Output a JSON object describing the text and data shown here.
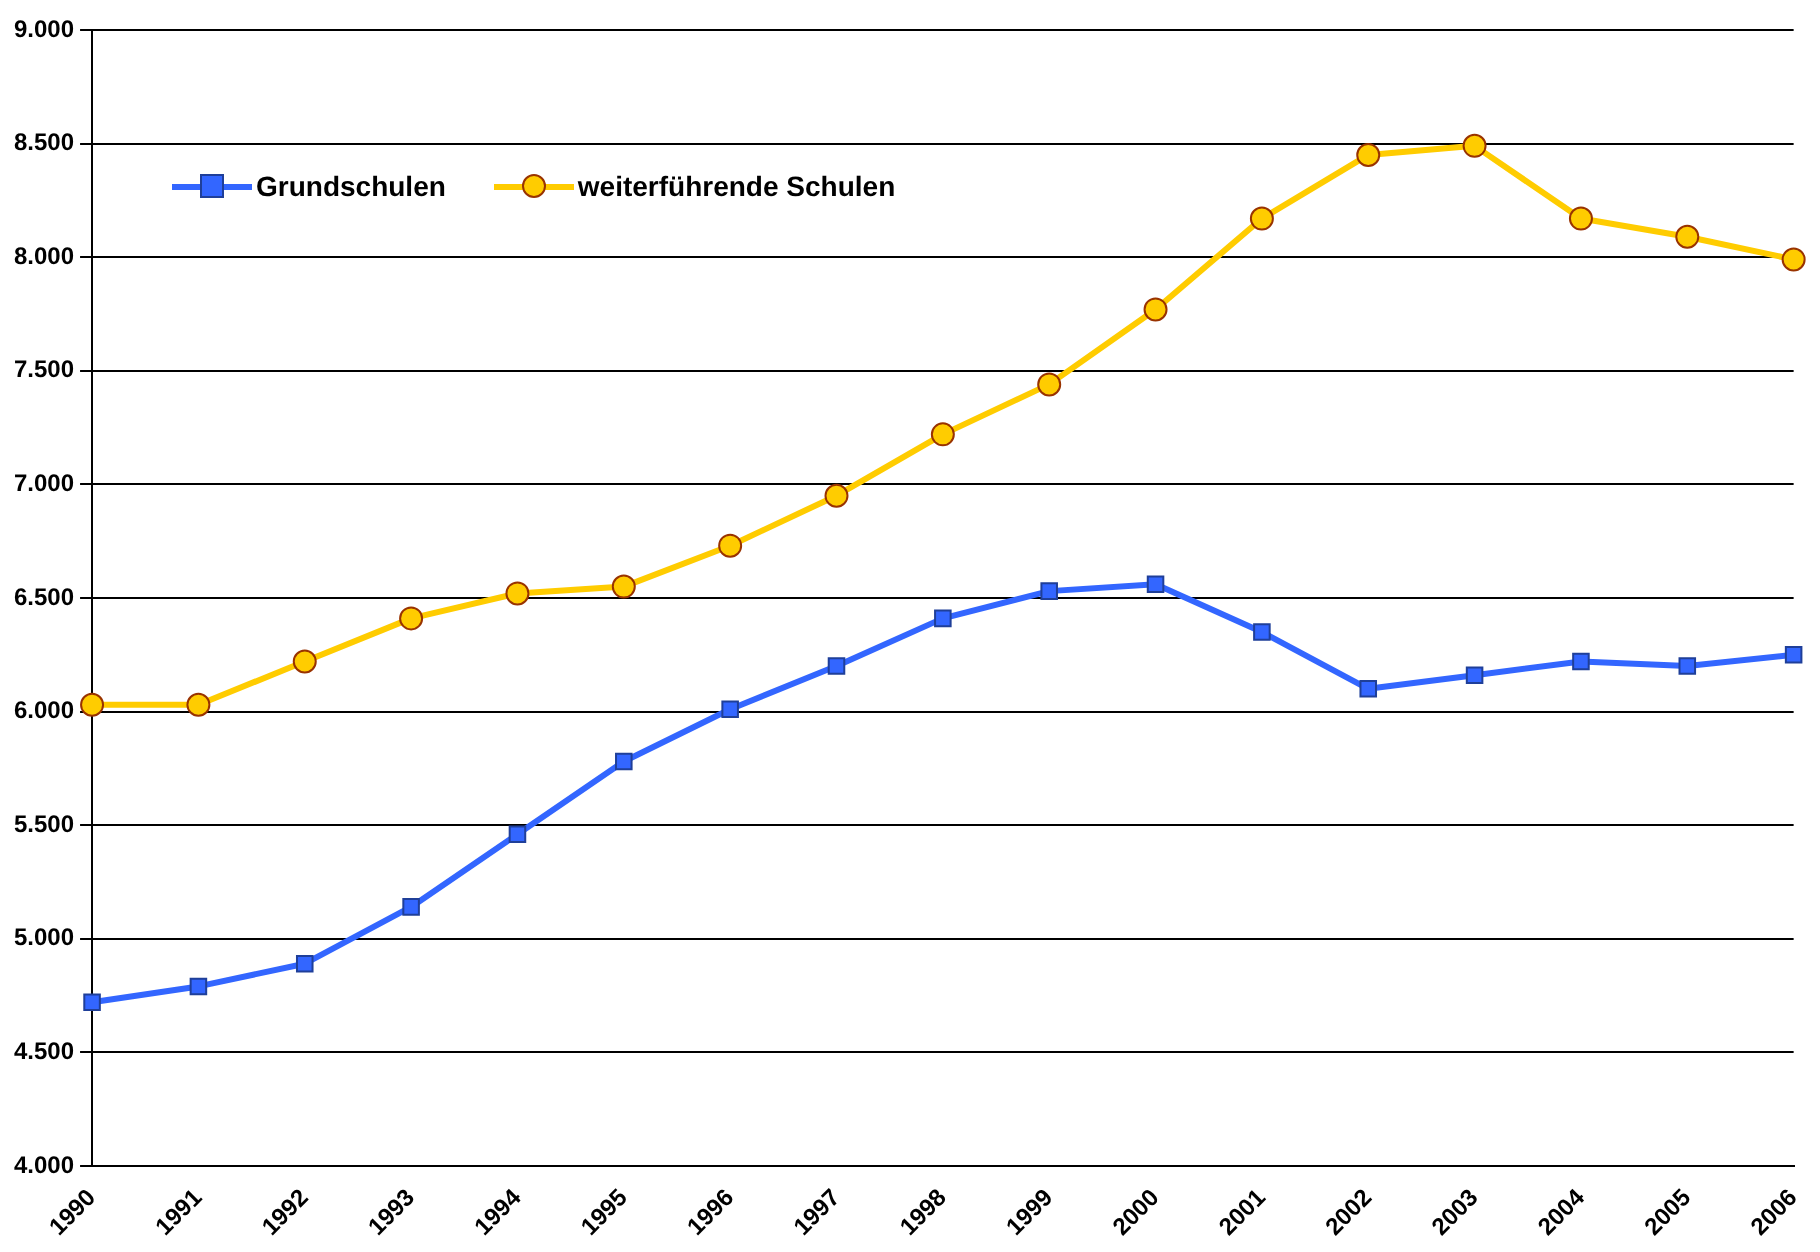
{
  "chart_data": {
    "type": "line",
    "categories": [
      "1990",
      "1991",
      "1992",
      "1993",
      "1994",
      "1995",
      "1996",
      "1997",
      "1998",
      "1999",
      "2000",
      "2001",
      "2002",
      "2003",
      "2004",
      "2005",
      "2006"
    ],
    "series": [
      {
        "name": "Grundschulen",
        "color": "#3366ff",
        "marker": "square",
        "values": [
          4720,
          4790,
          4890,
          5140,
          5460,
          5780,
          6010,
          6200,
          6410,
          6530,
          6560,
          6350,
          6100,
          6160,
          6220,
          6200,
          6250
        ]
      },
      {
        "name": "weiterführende Schulen",
        "color": "#ffcc00",
        "marker": "circle",
        "values": [
          6030,
          6030,
          6220,
          6410,
          6520,
          6550,
          6730,
          6950,
          7220,
          7440,
          7770,
          8170,
          8450,
          8490,
          8170,
          8090,
          7990
        ]
      }
    ],
    "ylim": [
      4000,
      9000
    ],
    "yticks": [
      {
        "value": 4000,
        "label": "4.000"
      },
      {
        "value": 4500,
        "label": "4.500"
      },
      {
        "value": 5000,
        "label": "5.000"
      },
      {
        "value": 5500,
        "label": "5.500"
      },
      {
        "value": 6000,
        "label": "6.000"
      },
      {
        "value": 6500,
        "label": "6.500"
      },
      {
        "value": 7000,
        "label": "7.000"
      },
      {
        "value": 7500,
        "label": "7.500"
      },
      {
        "value": 8000,
        "label": "8.000"
      },
      {
        "value": 8500,
        "label": "8.500"
      },
      {
        "value": 9000,
        "label": "9.000"
      }
    ],
    "grid": "y",
    "legend": "top left",
    "line_style": "solid"
  }
}
